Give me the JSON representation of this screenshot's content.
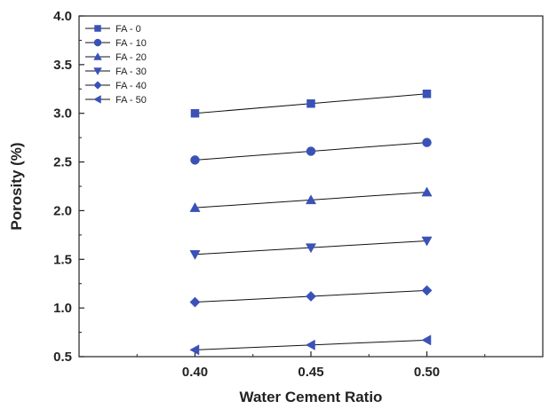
{
  "chart_data": {
    "type": "line",
    "xlabel": "Water Cement Ratio",
    "ylabel": "Porosity (%)",
    "x": [
      0.4,
      0.45,
      0.5
    ],
    "x_tick_labels": [
      "0.40",
      "0.45",
      "0.50"
    ],
    "xlim": [
      0.35,
      0.55
    ],
    "ylim": [
      0.5,
      4.0
    ],
    "y_ticks": [
      0.5,
      1.0,
      1.5,
      2.0,
      2.5,
      3.0,
      3.5,
      4.0
    ],
    "y_tick_labels": [
      "0.5",
      "1.0",
      "1.5",
      "2.0",
      "2.5",
      "3.0",
      "3.5",
      "4.0"
    ],
    "grid": false,
    "legend_position": "top-left",
    "marker_color": "#3a52b8",
    "line_color": "#111111",
    "series": [
      {
        "name": "FA - 0",
        "marker": "square",
        "values": [
          3.0,
          3.1,
          3.2
        ]
      },
      {
        "name": "FA - 10",
        "marker": "circle",
        "values": [
          2.52,
          2.61,
          2.7
        ]
      },
      {
        "name": "FA - 20",
        "marker": "triangle-up",
        "values": [
          2.03,
          2.11,
          2.19
        ]
      },
      {
        "name": "FA - 30",
        "marker": "triangle-down",
        "values": [
          1.55,
          1.62,
          1.69
        ]
      },
      {
        "name": "FA - 40",
        "marker": "diamond",
        "values": [
          1.06,
          1.12,
          1.18
        ]
      },
      {
        "name": "FA - 50",
        "marker": "triangle-left",
        "values": [
          0.57,
          0.62,
          0.67
        ]
      }
    ]
  }
}
